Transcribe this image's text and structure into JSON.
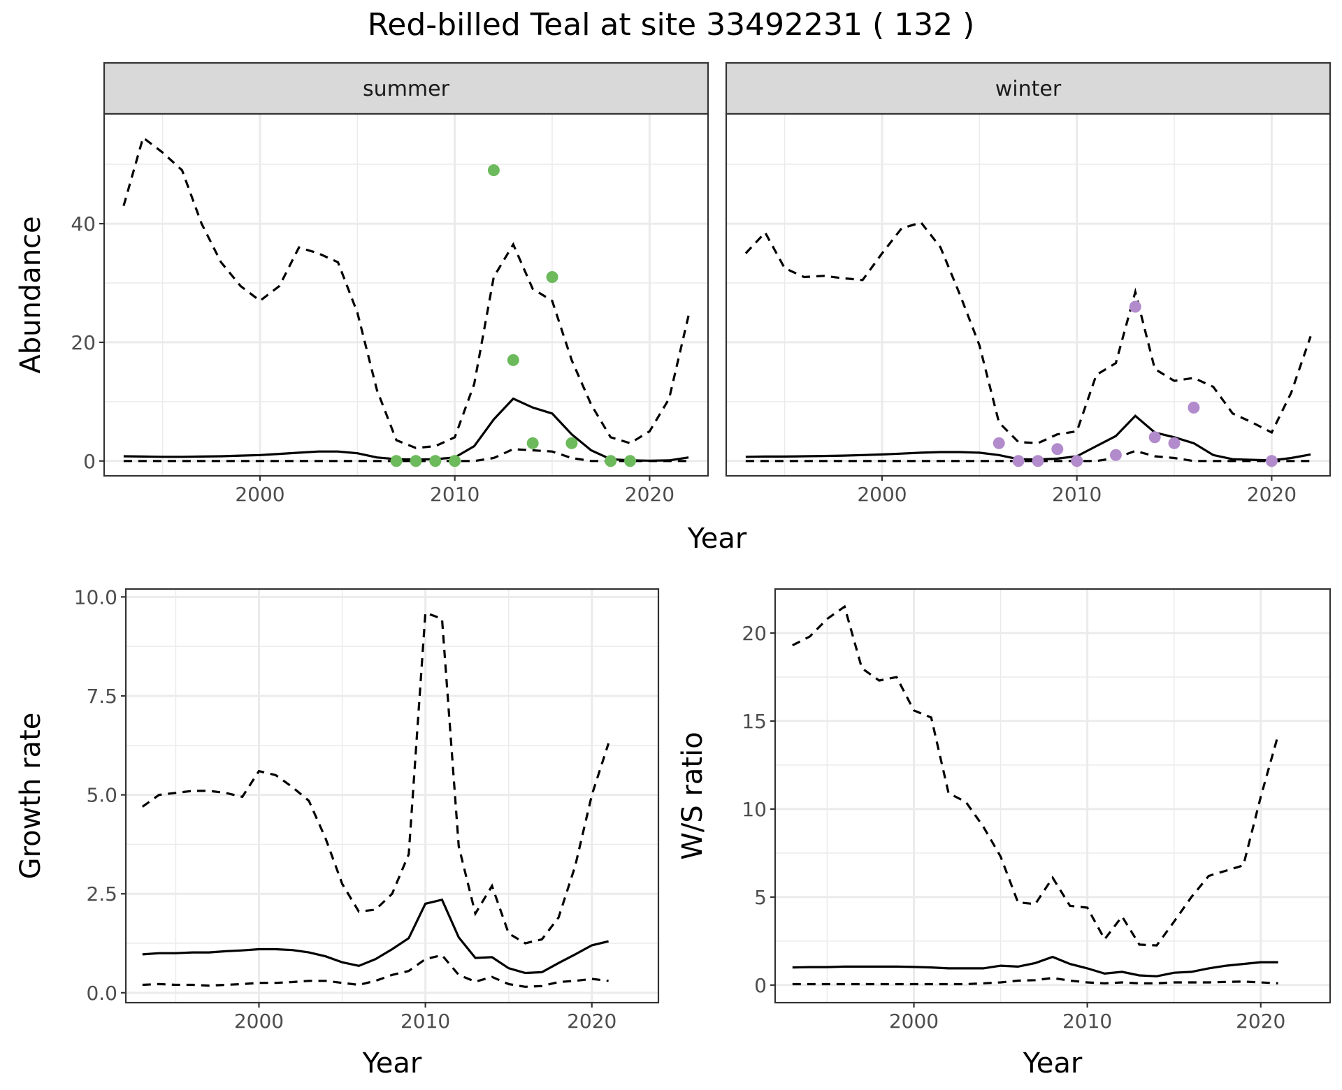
{
  "title": "Red-billed Teal at site 33492231 ( 132 )",
  "chart_data": [
    {
      "id": "abundance",
      "type": "line",
      "facets": [
        "summer",
        "winter"
      ],
      "xlabel": "Year",
      "ylabel": "Abundance",
      "xlim": [
        1992,
        2023
      ],
      "ylim": [
        -2.5,
        58.5
      ],
      "xticks": [
        2000,
        2010,
        2020
      ],
      "yticks": [
        0,
        20,
        40
      ],
      "grid": true,
      "panels": [
        {
          "facet": "summer",
          "point_color": "#6cba5c",
          "x": [
            1993,
            1994,
            1995,
            1996,
            1997,
            1998,
            1999,
            2000,
            2001,
            2002,
            2003,
            2004,
            2005,
            2006,
            2007,
            2008,
            2009,
            2010,
            2011,
            2012,
            2013,
            2014,
            2015,
            2016,
            2017,
            2018,
            2019,
            2020,
            2021,
            2022
          ],
          "mean": [
            0.8,
            0.75,
            0.7,
            0.7,
            0.75,
            0.8,
            0.9,
            1.0,
            1.2,
            1.4,
            1.6,
            1.6,
            1.3,
            0.6,
            0.3,
            0.25,
            0.3,
            0.6,
            2.5,
            7.0,
            10.5,
            9.0,
            8.0,
            4.5,
            1.8,
            0.3,
            0.1,
            0.05,
            0.1,
            0.6
          ],
          "upper": [
            43,
            54.5,
            52,
            49,
            40,
            33.5,
            29.5,
            27,
            29.5,
            36,
            35,
            33.5,
            25,
            12,
            3.5,
            2.2,
            2.5,
            4,
            13,
            31,
            36.5,
            29,
            27,
            17,
            9.5,
            4,
            3,
            5,
            10.5,
            24.5
          ],
          "lower": [
            0,
            0,
            0,
            0,
            0,
            0,
            0,
            0,
            0,
            0,
            0,
            0,
            0,
            0,
            0,
            0,
            0,
            0,
            0,
            0.5,
            2,
            1.8,
            1.6,
            0.5,
            0,
            0,
            0,
            0,
            0,
            0
          ],
          "points": [
            [
              2007,
              0
            ],
            [
              2008,
              0
            ],
            [
              2009,
              0
            ],
            [
              2010,
              0
            ],
            [
              2012,
              49
            ],
            [
              2013,
              17
            ],
            [
              2014,
              3
            ],
            [
              2015,
              31
            ],
            [
              2016,
              3
            ],
            [
              2018,
              0
            ],
            [
              2019,
              0
            ]
          ]
        },
        {
          "facet": "winter",
          "point_color": "#b28bcc",
          "x": [
            1993,
            1994,
            1995,
            1996,
            1997,
            1998,
            1999,
            2000,
            2001,
            2002,
            2003,
            2004,
            2005,
            2006,
            2007,
            2008,
            2009,
            2010,
            2011,
            2012,
            2013,
            2014,
            2015,
            2016,
            2017,
            2018,
            2019,
            2020,
            2021,
            2022
          ],
          "mean": [
            0.7,
            0.75,
            0.75,
            0.8,
            0.85,
            0.9,
            1.0,
            1.1,
            1.25,
            1.4,
            1.5,
            1.5,
            1.4,
            1.0,
            0.3,
            0.25,
            0.4,
            0.8,
            2.5,
            4.2,
            7.6,
            4.8,
            4.0,
            3.0,
            1.0,
            0.3,
            0.2,
            0.1,
            0.5,
            1.1
          ],
          "upper": [
            35,
            38.5,
            32.5,
            31,
            31.2,
            30.8,
            30.5,
            35,
            39.2,
            40.2,
            36,
            28,
            19.5,
            6.5,
            3.2,
            3.0,
            4.5,
            5,
            14.5,
            16.5,
            28.5,
            15.5,
            13.5,
            14,
            12.5,
            8,
            6.5,
            4.8,
            11.5,
            21
          ],
          "lower": [
            0,
            0,
            0,
            0,
            0,
            0,
            0,
            0,
            0,
            0,
            0,
            0,
            0,
            0,
            0,
            0,
            0,
            0,
            0,
            0.5,
            1.7,
            0.8,
            0.5,
            0,
            0,
            0,
            0,
            0,
            0,
            0
          ],
          "points": [
            [
              2006,
              3
            ],
            [
              2007,
              0
            ],
            [
              2008,
              0
            ],
            [
              2009,
              2
            ],
            [
              2010,
              0
            ],
            [
              2012,
              1
            ],
            [
              2013,
              26
            ],
            [
              2014,
              4
            ],
            [
              2015,
              3
            ],
            [
              2016,
              9
            ],
            [
              2020,
              0
            ]
          ]
        }
      ]
    },
    {
      "id": "growth",
      "type": "line",
      "xlabel": "Year",
      "ylabel": "Growth rate",
      "xlim": [
        1992,
        2024
      ],
      "ylim": [
        -0.25,
        10.2
      ],
      "xticks": [
        2000,
        2010,
        2020
      ],
      "yticks": [
        0.0,
        2.5,
        5.0,
        7.5,
        10.0
      ],
      "ytick_labels": [
        "0.0",
        "2.5",
        "5.0",
        "7.5",
        "10.0"
      ],
      "grid": true,
      "x": [
        1993,
        1994,
        1995,
        1996,
        1997,
        1998,
        1999,
        2000,
        2001,
        2002,
        2003,
        2004,
        2005,
        2006,
        2007,
        2008,
        2009,
        2010,
        2011,
        2012,
        2013,
        2014,
        2015,
        2016,
        2017,
        2018,
        2019,
        2020,
        2021
      ],
      "mean": [
        0.97,
        1.0,
        1.0,
        1.02,
        1.02,
        1.05,
        1.07,
        1.1,
        1.1,
        1.08,
        1.02,
        0.92,
        0.77,
        0.68,
        0.85,
        1.1,
        1.38,
        2.25,
        2.35,
        1.4,
        0.88,
        0.9,
        0.62,
        0.5,
        0.52,
        0.75,
        0.97,
        1.2,
        1.3
      ],
      "upper": [
        4.7,
        5.0,
        5.05,
        5.1,
        5.1,
        5.05,
        4.95,
        5.6,
        5.5,
        5.2,
        4.85,
        3.9,
        2.75,
        2.05,
        2.1,
        2.5,
        3.5,
        9.6,
        9.45,
        3.7,
        2.0,
        2.7,
        1.5,
        1.25,
        1.35,
        1.9,
        3.2,
        5.0,
        6.3
      ],
      "lower": [
        0.2,
        0.22,
        0.2,
        0.2,
        0.18,
        0.2,
        0.22,
        0.25,
        0.25,
        0.27,
        0.3,
        0.3,
        0.25,
        0.2,
        0.3,
        0.45,
        0.55,
        0.85,
        0.95,
        0.45,
        0.28,
        0.4,
        0.22,
        0.15,
        0.17,
        0.27,
        0.3,
        0.35,
        0.3
      ]
    },
    {
      "id": "ws_ratio",
      "type": "line",
      "xlabel": "Year",
      "ylabel": "W/S ratio",
      "xlim": [
        1992,
        2024
      ],
      "ylim": [
        -1.0,
        22.5
      ],
      "xticks": [
        2000,
        2010,
        2020
      ],
      "yticks": [
        0,
        5,
        10,
        15,
        20
      ],
      "grid": true,
      "x": [
        1993,
        1994,
        1995,
        1996,
        1997,
        1998,
        1999,
        2000,
        2001,
        2002,
        2003,
        2004,
        2005,
        2006,
        2007,
        2008,
        2009,
        2010,
        2011,
        2012,
        2013,
        2014,
        2015,
        2016,
        2017,
        2018,
        2019,
        2020,
        2021
      ],
      "mean": [
        1.0,
        1.02,
        1.02,
        1.05,
        1.05,
        1.05,
        1.05,
        1.03,
        1.0,
        0.95,
        0.95,
        0.95,
        1.1,
        1.05,
        1.25,
        1.6,
        1.2,
        0.95,
        0.65,
        0.75,
        0.55,
        0.5,
        0.7,
        0.75,
        0.95,
        1.1,
        1.2,
        1.3,
        1.3
      ],
      "upper": [
        19.3,
        19.8,
        20.8,
        21.5,
        18.0,
        17.3,
        17.5,
        15.6,
        15.2,
        10.9,
        10.4,
        9.0,
        7.3,
        4.7,
        4.6,
        6.1,
        4.5,
        4.4,
        2.6,
        3.9,
        2.3,
        2.25,
        3.6,
        5.0,
        6.2,
        6.5,
        6.8,
        10.7,
        14.2
      ],
      "lower": [
        0.05,
        0.05,
        0.05,
        0.05,
        0.05,
        0.05,
        0.05,
        0.05,
        0.05,
        0.05,
        0.05,
        0.1,
        0.15,
        0.25,
        0.28,
        0.4,
        0.25,
        0.15,
        0.1,
        0.15,
        0.1,
        0.1,
        0.15,
        0.15,
        0.15,
        0.18,
        0.2,
        0.15,
        0.1
      ]
    }
  ]
}
